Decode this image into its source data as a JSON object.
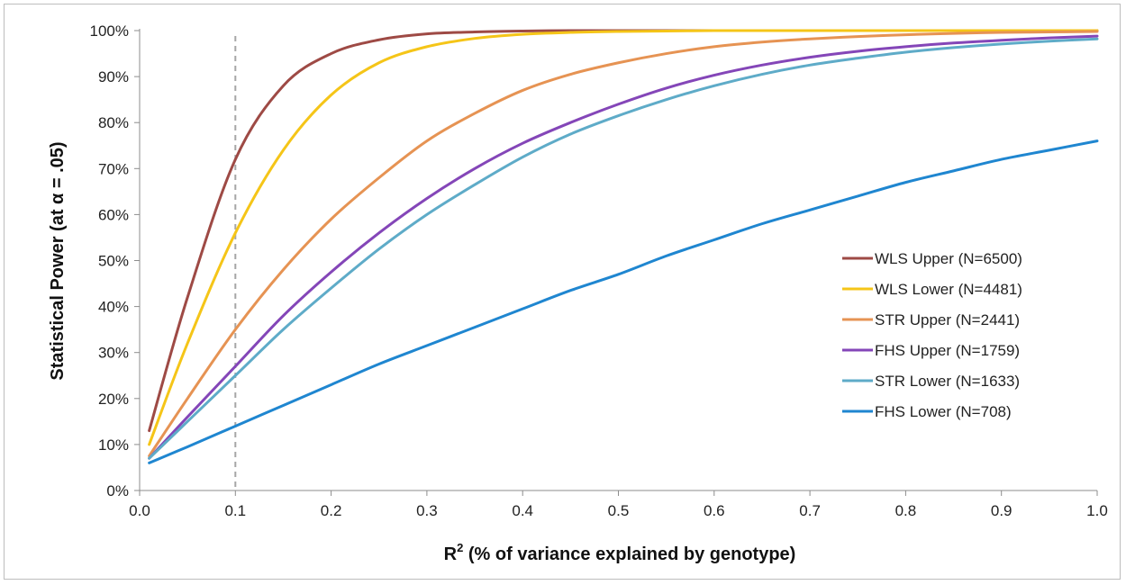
{
  "chart_data": {
    "type": "line",
    "xlabel_main": "R",
    "xlabel_sup": "2",
    "xlabel_rest": " (% of variance explained by genotype)",
    "ylabel": "Statistical Power (at α = .05)",
    "xlim": [
      0,
      1
    ],
    "ylim": [
      0,
      100
    ],
    "x_ticks": [
      "0.0",
      "0.1",
      "0.2",
      "0.3",
      "0.4",
      "0.5",
      "0.6",
      "0.7",
      "0.8",
      "0.9",
      "1.0"
    ],
    "y_ticks": [
      "0%",
      "10%",
      "20%",
      "30%",
      "40%",
      "50%",
      "60%",
      "70%",
      "80%",
      "90%",
      "100%"
    ],
    "grid": false,
    "legend_position": "right-center",
    "reference_line": {
      "x": 0.1,
      "style": "dashed",
      "color": "#a6a6a6"
    },
    "x": [
      0.01,
      0.05,
      0.1,
      0.15,
      0.2,
      0.25,
      0.3,
      0.35,
      0.4,
      0.45,
      0.5,
      0.55,
      0.6,
      0.65,
      0.7,
      0.75,
      0.8,
      0.85,
      0.9,
      0.95,
      1.0
    ],
    "series": [
      {
        "name": "WLS Upper (N=6500)",
        "color": "#9e4a45",
        "values": [
          13,
          42,
          72,
          88,
          95,
          98,
          99.3,
          99.7,
          99.9,
          100,
          100,
          100,
          100,
          100,
          100,
          100,
          100,
          100,
          100,
          100,
          100
        ]
      },
      {
        "name": "WLS Lower (N=4481)",
        "color": "#f5c518",
        "values": [
          10,
          32,
          56,
          74,
          86,
          93,
          96.5,
          98.3,
          99.2,
          99.6,
          99.8,
          99.9,
          100,
          100,
          100,
          100,
          100,
          100,
          100,
          100,
          100
        ]
      },
      {
        "name": "STR Upper (N=2441)",
        "color": "#e69353",
        "values": [
          7.5,
          20,
          35,
          48,
          59,
          68,
          76,
          82,
          87,
          90.5,
          93,
          95,
          96.5,
          97.5,
          98.2,
          98.7,
          99.1,
          99.4,
          99.6,
          99.7,
          99.8
        ]
      },
      {
        "name": "FHS Upper (N=1759)",
        "color": "#8446b8",
        "values": [
          7,
          16,
          27,
          38,
          47.5,
          56,
          63.5,
          70,
          75.5,
          80,
          84,
          87.5,
          90.3,
          92.5,
          94.2,
          95.5,
          96.5,
          97.3,
          97.9,
          98.4,
          98.8
        ]
      },
      {
        "name": "STR Lower (N=1633)",
        "color": "#5eabc8",
        "values": [
          7,
          15,
          25,
          35,
          44,
          52.5,
          60,
          66.5,
          72.5,
          77.5,
          81.5,
          85,
          88,
          90.5,
          92.5,
          94,
          95.3,
          96.3,
          97.1,
          97.7,
          98.2
        ]
      },
      {
        "name": "FHS Lower (N=708)",
        "color": "#1f86d0",
        "values": [
          6,
          9.5,
          14,
          18.5,
          23,
          27.5,
          31.5,
          35.5,
          39.5,
          43.5,
          47,
          51,
          54.5,
          58,
          61,
          64,
          67,
          69.5,
          72,
          74,
          76
        ]
      }
    ]
  }
}
